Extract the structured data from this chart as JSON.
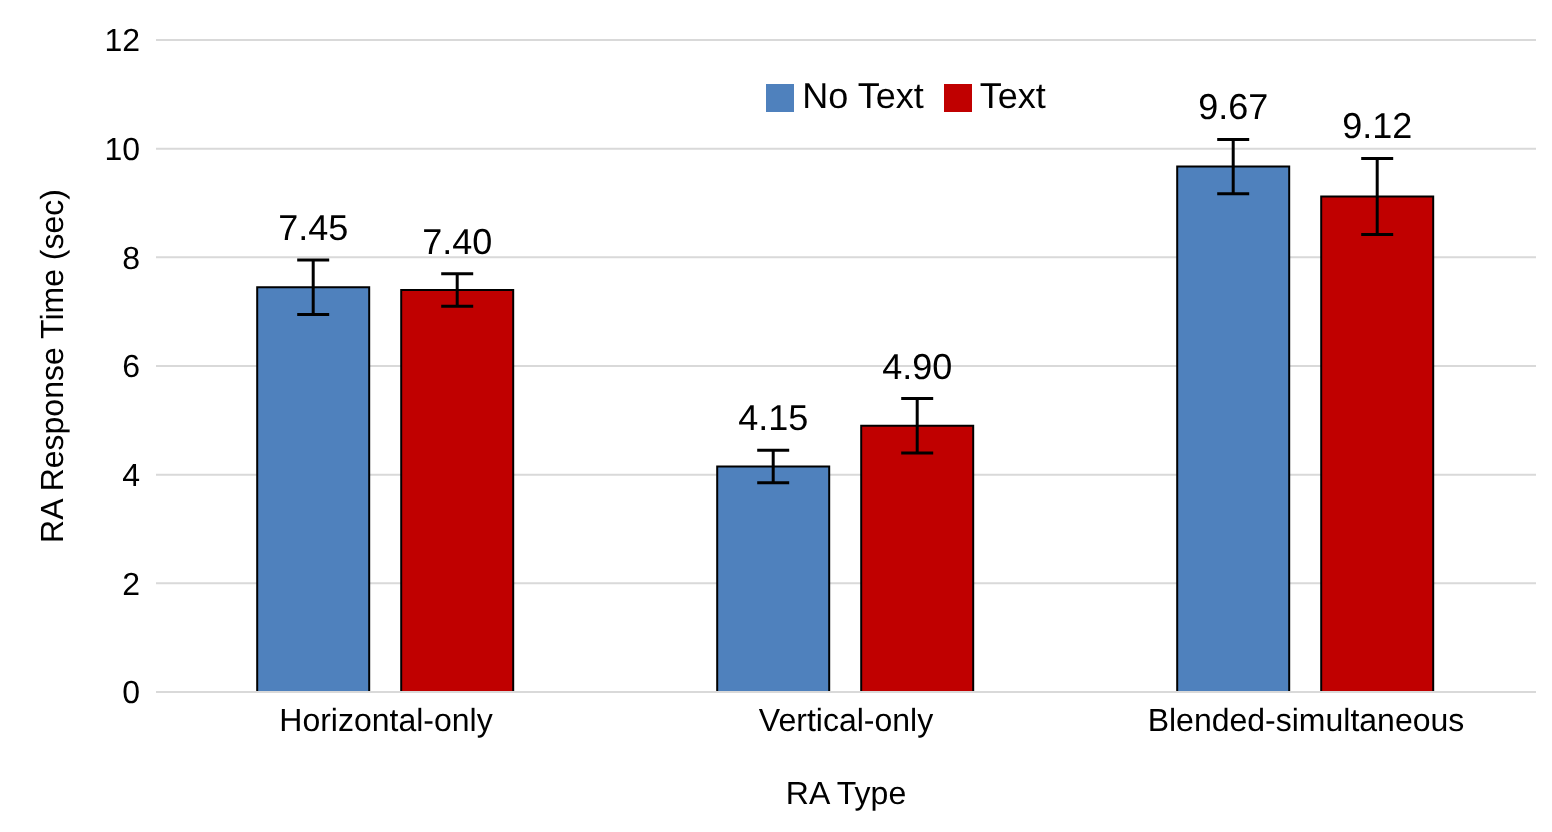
{
  "chart_data": {
    "type": "bar",
    "xlabel": "RA Type",
    "ylabel": "RA Response Time (sec)",
    "categories": [
      "Horizontal-only",
      "Vertical-only",
      "Blended-simultaneous"
    ],
    "series": [
      {
        "name": "No Text",
        "color": "#4f81bd",
        "values": [
          7.45,
          4.15,
          9.67
        ],
        "value_labels": [
          "7.45",
          "4.15",
          "9.67"
        ],
        "errors": [
          0.5,
          0.3,
          0.5
        ]
      },
      {
        "name": "Text",
        "color": "#c00000",
        "values": [
          7.4,
          4.9,
          9.12
        ],
        "value_labels": [
          "7.40",
          "4.90",
          "9.12"
        ],
        "errors": [
          0.3,
          0.5,
          0.7
        ]
      }
    ],
    "ylim": [
      0,
      12
    ],
    "yticks": [
      0,
      2,
      4,
      6,
      8,
      10,
      12
    ],
    "grid": "y",
    "legend": "top"
  }
}
